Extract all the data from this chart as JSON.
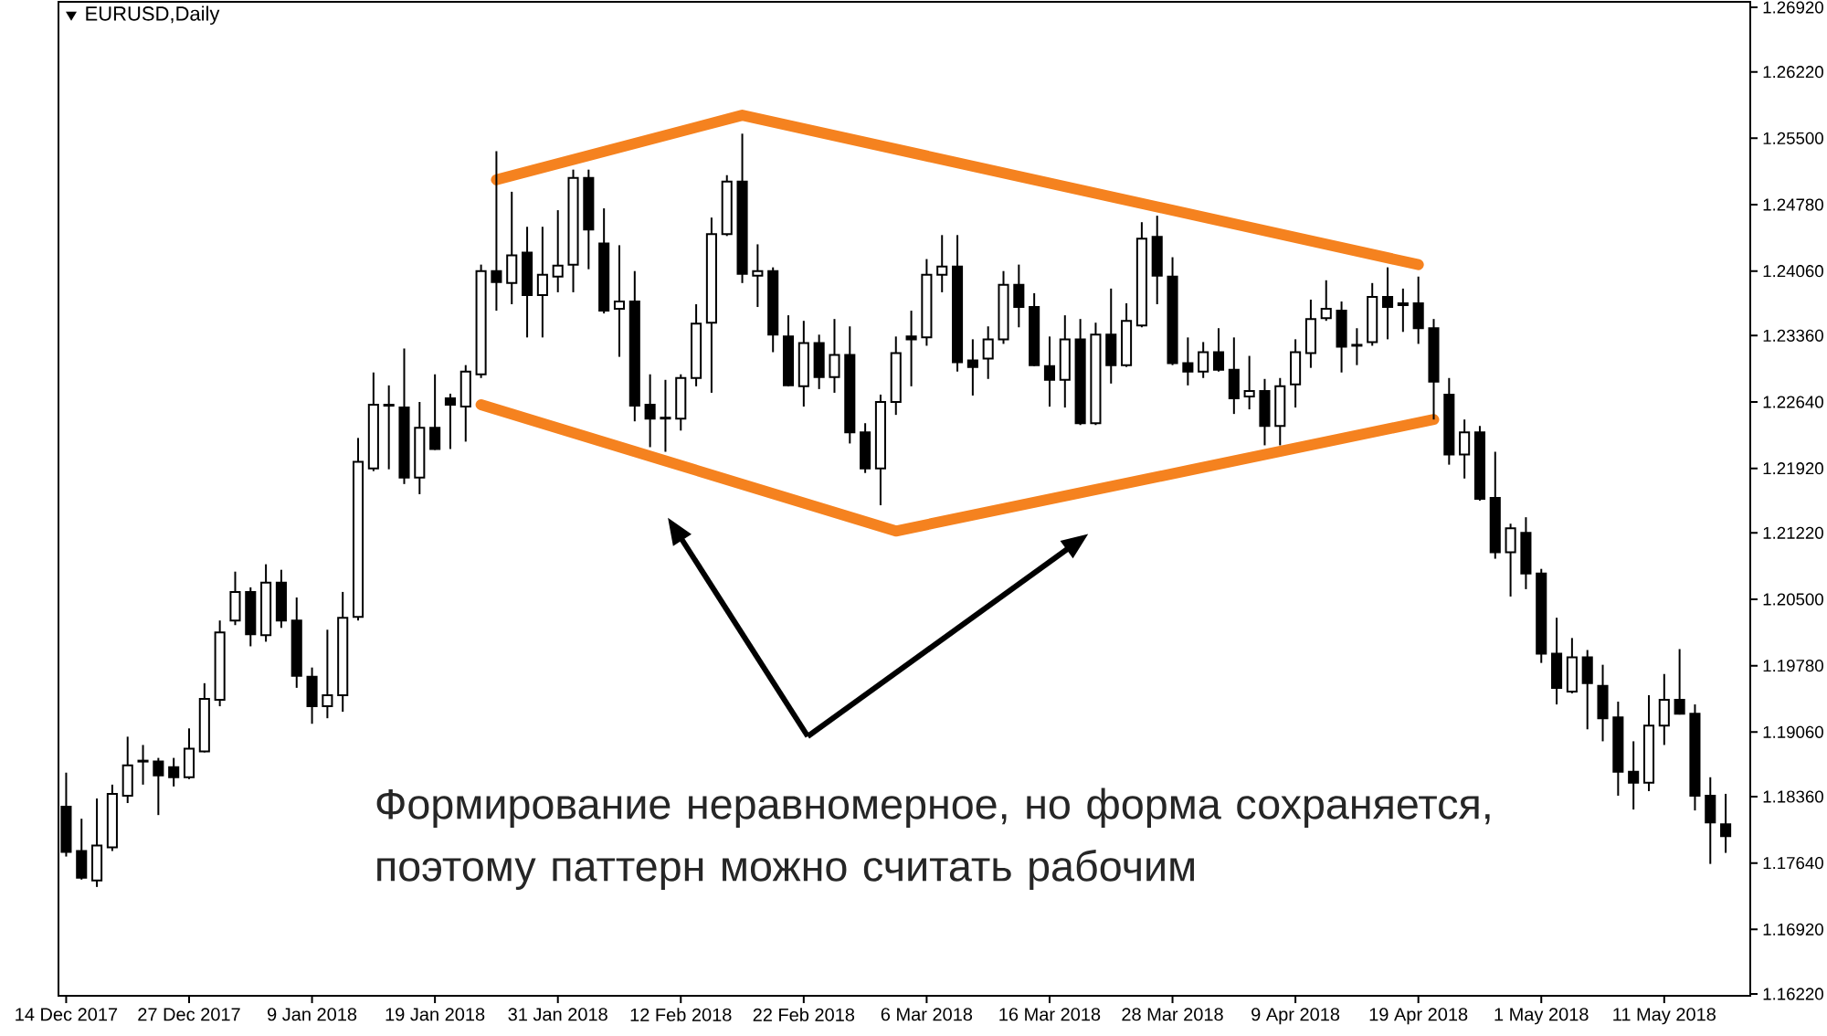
{
  "chart_data": {
    "type": "candlestick",
    "title": "EURUSD,Daily",
    "categories": [
      "14 Dec 2017",
      null,
      null,
      null,
      null,
      null,
      null,
      null,
      "27 Dec 2017",
      null,
      null,
      null,
      null,
      null,
      null,
      null,
      "9 Jan 2018",
      null,
      null,
      null,
      null,
      null,
      null,
      null,
      "19 Jan 2018",
      null,
      null,
      null,
      null,
      null,
      null,
      null,
      "31 Jan 2018",
      null,
      null,
      null,
      null,
      null,
      null,
      null,
      "12 Feb 2018",
      null,
      null,
      null,
      null,
      null,
      null,
      null,
      "22 Feb 2018",
      null,
      null,
      null,
      null,
      null,
      null,
      null,
      "6 Mar 2018",
      null,
      null,
      null,
      null,
      null,
      null,
      null,
      "16 Mar 2018",
      null,
      null,
      null,
      null,
      null,
      null,
      null,
      "28 Mar 2018",
      null,
      null,
      null,
      null,
      null,
      null,
      null,
      "9 Apr 2018",
      null,
      null,
      null,
      null,
      null,
      null,
      null,
      "19 Apr 2018",
      null,
      null,
      null,
      null,
      null,
      null,
      null,
      "1 May 2018",
      null,
      null,
      null,
      null,
      null,
      null,
      null,
      "11 May 2018",
      null,
      null,
      null,
      null
    ],
    "ohlc": [
      [
        1.1825,
        1.1862,
        1.1771,
        1.1776
      ],
      [
        1.1777,
        1.1812,
        1.1746,
        1.1748
      ],
      [
        1.1745,
        1.1834,
        1.1738,
        1.1783
      ],
      [
        1.1781,
        1.1849,
        1.1777,
        1.1839
      ],
      [
        1.1837,
        1.1901,
        1.1829,
        1.187
      ],
      [
        1.1874,
        1.1892,
        1.1849,
        1.1875
      ],
      [
        1.1874,
        1.1878,
        1.1816,
        1.1859
      ],
      [
        1.1868,
        1.1878,
        1.1847,
        1.1857
      ],
      [
        1.1857,
        1.191,
        1.1855,
        1.1888
      ],
      [
        1.1885,
        1.1959,
        1.1884,
        1.1942
      ],
      [
        1.1941,
        1.2027,
        1.1934,
        1.2014
      ],
      [
        1.2027,
        1.208,
        1.2022,
        1.2058
      ],
      [
        1.2058,
        1.2063,
        1.1999,
        1.2012
      ],
      [
        1.2011,
        1.2088,
        1.2004,
        1.2068
      ],
      [
        1.2068,
        1.2082,
        1.2019,
        1.2027
      ],
      [
        1.2027,
        1.2052,
        1.1954,
        1.1967
      ],
      [
        1.1966,
        1.1976,
        1.1915,
        1.1934
      ],
      [
        1.1934,
        1.2017,
        1.1921,
        1.1946
      ],
      [
        1.1946,
        1.2058,
        1.1928,
        1.203
      ],
      [
        1.2031,
        1.2225,
        1.2027,
        1.2199
      ],
      [
        1.2192,
        1.2296,
        1.2189,
        1.2261
      ],
      [
        1.2261,
        1.2282,
        1.2191,
        1.226
      ],
      [
        1.2258,
        1.2322,
        1.2175,
        1.2182
      ],
      [
        1.2182,
        1.2264,
        1.2164,
        1.2236
      ],
      [
        1.2236,
        1.2294,
        1.2212,
        1.2213
      ],
      [
        1.2268,
        1.2273,
        1.2213,
        1.2261
      ],
      [
        1.2259,
        1.2304,
        1.2221,
        1.2297
      ],
      [
        1.2294,
        1.2413,
        1.229,
        1.2406
      ],
      [
        1.2406,
        1.2536,
        1.2363,
        1.2394
      ],
      [
        1.2393,
        1.2492,
        1.237,
        1.2423
      ],
      [
        1.2426,
        1.2454,
        1.2334,
        1.238
      ],
      [
        1.238,
        1.2454,
        1.2334,
        1.2402
      ],
      [
        1.24,
        1.2472,
        1.2383,
        1.2412
      ],
      [
        1.2413,
        1.2516,
        1.2383,
        1.2507
      ],
      [
        1.2507,
        1.2516,
        1.2408,
        1.2451
      ],
      [
        1.2436,
        1.2474,
        1.236,
        1.2363
      ],
      [
        1.2365,
        1.2434,
        1.2313,
        1.2373
      ],
      [
        1.2373,
        1.2406,
        1.2243,
        1.226
      ],
      [
        1.2261,
        1.2294,
        1.2215,
        1.2246
      ],
      [
        1.2246,
        1.2288,
        1.221,
        1.2247
      ],
      [
        1.2246,
        1.2294,
        1.2233,
        1.229
      ],
      [
        1.229,
        1.237,
        1.2281,
        1.2349
      ],
      [
        1.235,
        1.2464,
        1.2274,
        1.2446
      ],
      [
        1.2446,
        1.251,
        1.2444,
        1.2503
      ],
      [
        1.2503,
        1.2555,
        1.2393,
        1.2403
      ],
      [
        1.2401,
        1.2435,
        1.2367,
        1.2406
      ],
      [
        1.2406,
        1.241,
        1.2318,
        1.2337
      ],
      [
        1.2335,
        1.2358,
        1.2281,
        1.2282
      ],
      [
        1.2281,
        1.2352,
        1.2259,
        1.2328
      ],
      [
        1.2328,
        1.2337,
        1.2278,
        1.2291
      ],
      [
        1.2291,
        1.2354,
        1.2274,
        1.2315
      ],
      [
        1.2315,
        1.2346,
        1.2219,
        1.2231
      ],
      [
        1.2231,
        1.2241,
        1.2187,
        1.2192
      ],
      [
        1.2192,
        1.2272,
        1.2152,
        1.2264
      ],
      [
        1.2264,
        1.2335,
        1.225,
        1.2317
      ],
      [
        1.2335,
        1.2363,
        1.2281,
        1.2332
      ],
      [
        1.2334,
        1.2419,
        1.2325,
        1.2402
      ],
      [
        1.2402,
        1.2445,
        1.2383,
        1.2411
      ],
      [
        1.2411,
        1.2445,
        1.2297,
        1.2307
      ],
      [
        1.2309,
        1.2332,
        1.2271,
        1.2302
      ],
      [
        1.2311,
        1.2346,
        1.2289,
        1.2332
      ],
      [
        1.2332,
        1.2406,
        1.2327,
        1.2391
      ],
      [
        1.2391,
        1.2413,
        1.2345,
        1.2367
      ],
      [
        1.2367,
        1.2382,
        1.2303,
        1.2304
      ],
      [
        1.2303,
        1.2335,
        1.2259,
        1.2288
      ],
      [
        1.2288,
        1.2358,
        1.2258,
        1.2332
      ],
      [
        1.2332,
        1.2354,
        1.2239,
        1.2241
      ],
      [
        1.2241,
        1.235,
        1.2239,
        1.2337
      ],
      [
        1.2337,
        1.2387,
        1.2284,
        1.2304
      ],
      [
        1.2304,
        1.2371,
        1.2302,
        1.2352
      ],
      [
        1.2347,
        1.2459,
        1.2345,
        1.2441
      ],
      [
        1.2443,
        1.2466,
        1.237,
        1.2401
      ],
      [
        1.24,
        1.2421,
        1.2304,
        1.2306
      ],
      [
        1.2306,
        1.2334,
        1.2282,
        1.2297
      ],
      [
        1.2297,
        1.2329,
        1.229,
        1.2318
      ],
      [
        1.2318,
        1.2344,
        1.2297,
        1.2299
      ],
      [
        1.2299,
        1.2334,
        1.2251,
        1.2268
      ],
      [
        1.227,
        1.2314,
        1.2256,
        1.2276
      ],
      [
        1.2276,
        1.2289,
        1.2217,
        1.2238
      ],
      [
        1.2238,
        1.229,
        1.2217,
        1.2281
      ],
      [
        1.2283,
        1.2332,
        1.2258,
        1.2318
      ],
      [
        1.2317,
        1.2375,
        1.2301,
        1.2354
      ],
      [
        1.2355,
        1.2396,
        1.2352,
        1.2365
      ],
      [
        1.2363,
        1.2373,
        1.2296,
        1.2324
      ],
      [
        1.2325,
        1.2344,
        1.2304,
        1.2326
      ],
      [
        1.2329,
        1.2393,
        1.2325,
        1.2378
      ],
      [
        1.2378,
        1.241,
        1.2332,
        1.2367
      ],
      [
        1.2371,
        1.2387,
        1.234,
        1.2369
      ],
      [
        1.2371,
        1.24,
        1.2327,
        1.2344
      ],
      [
        1.2344,
        1.2354,
        1.2245,
        1.2286
      ],
      [
        1.2272,
        1.229,
        1.2196,
        1.2207
      ],
      [
        1.2207,
        1.2245,
        1.2181,
        1.2231
      ],
      [
        1.2231,
        1.2238,
        1.2157,
        1.2159
      ],
      [
        1.216,
        1.221,
        1.2094,
        1.2101
      ],
      [
        1.2101,
        1.2132,
        1.2053,
        1.2127
      ],
      [
        1.2122,
        1.2139,
        1.2061,
        1.2078
      ],
      [
        1.2078,
        1.2083,
        1.1981,
        1.1991
      ],
      [
        1.1991,
        1.203,
        1.1936,
        1.1954
      ],
      [
        1.195,
        1.2008,
        1.1948,
        1.1987
      ],
      [
        1.1987,
        1.1995,
        1.1909,
        1.1959
      ],
      [
        1.1956,
        1.1979,
        1.1896,
        1.1921
      ],
      [
        1.1922,
        1.1939,
        1.1837,
        1.1863
      ],
      [
        1.1863,
        1.1896,
        1.1822,
        1.1851
      ],
      [
        1.1851,
        1.1946,
        1.1842,
        1.1913
      ],
      [
        1.1913,
        1.1969,
        1.1892,
        1.1941
      ],
      [
        1.1941,
        1.1996,
        1.1925,
        1.1926
      ],
      [
        1.1926,
        1.1936,
        1.1821,
        1.1837
      ],
      [
        1.1837,
        1.1857,
        1.1763,
        1.1808
      ],
      [
        1.1806,
        1.1839,
        1.1775,
        1.1793
      ]
    ],
    "series": [
      {
        "type": "line",
        "color": "#f5821f",
        "values": [
          null,
          null,
          null,
          null,
          null,
          null,
          null,
          null,
          null,
          null,
          null,
          null,
          null,
          null,
          null,
          null,
          null,
          null,
          null,
          null,
          null,
          null,
          null,
          null,
          null,
          null,
          null,
          null,
          1.2505,
          null,
          null,
          null,
          null,
          null,
          null,
          null,
          null,
          null,
          null,
          null,
          null,
          null,
          null,
          null,
          1.2575,
          null,
          null,
          null,
          null,
          null,
          null,
          null,
          null,
          null,
          null,
          null,
          null,
          null,
          null,
          null,
          null,
          null,
          null,
          null,
          null,
          null,
          null,
          null,
          null,
          null,
          null,
          null,
          null,
          null,
          null,
          null,
          null,
          null,
          null,
          null,
          null,
          null,
          null,
          null,
          null,
          null,
          null,
          null,
          1.2413,
          null,
          null,
          null,
          null,
          null,
          null,
          null,
          null,
          null,
          null,
          null,
          null,
          null,
          null,
          null,
          null,
          null,
          null,
          null,
          null
        ]
      },
      {
        "type": "line",
        "color": "#f5821f",
        "values": [
          null,
          null,
          null,
          null,
          null,
          null,
          null,
          null,
          null,
          null,
          null,
          null,
          null,
          null,
          null,
          null,
          null,
          null,
          null,
          null,
          null,
          null,
          null,
          null,
          null,
          null,
          null,
          1.2261,
          null,
          null,
          null,
          null,
          null,
          null,
          null,
          null,
          null,
          null,
          null,
          null,
          null,
          null,
          null,
          null,
          null,
          null,
          null,
          null,
          null,
          null,
          null,
          null,
          null,
          null,
          1.2124,
          null,
          null,
          null,
          null,
          null,
          null,
          null,
          null,
          null,
          null,
          null,
          null,
          null,
          null,
          null,
          null,
          null,
          null,
          null,
          null,
          null,
          null,
          null,
          null,
          null,
          null,
          null,
          null,
          null,
          null,
          null,
          null,
          null,
          null,
          1.2245,
          null,
          null,
          null,
          null,
          null,
          null,
          null,
          null,
          null,
          null,
          null,
          null,
          null,
          null,
          null,
          null,
          null,
          null,
          null
        ]
      }
    ],
    "ylim": [
      1.162,
      1.2698
    ],
    "yticks": [
      {
        "value": 1.2692,
        "label": "1.26920"
      },
      {
        "value": 1.2622,
        "label": "1.26220"
      },
      {
        "value": 1.255,
        "label": "1.25500"
      },
      {
        "value": 1.2478,
        "label": "1.24780"
      },
      {
        "value": 1.2406,
        "label": "1.24060"
      },
      {
        "value": 1.2336,
        "label": "1.23360"
      },
      {
        "value": 1.2264,
        "label": "1.22640"
      },
      {
        "value": 1.2192,
        "label": "1.21920"
      },
      {
        "value": 1.2122,
        "label": "1.21220"
      },
      {
        "value": 1.205,
        "label": "1.20500"
      },
      {
        "value": 1.1978,
        "label": "1.19780"
      },
      {
        "value": 1.1906,
        "label": "1.19060"
      },
      {
        "value": 1.1836,
        "label": "1.18360"
      },
      {
        "value": 1.1764,
        "label": "1.17640"
      },
      {
        "value": 1.1692,
        "label": "1.16920"
      },
      {
        "value": 1.1622,
        "label": "1.16220"
      }
    ],
    "annotations": [
      "Формирование неравномерное, но форма сохраняется, поэтому паттерн можно считать рабочим"
    ]
  }
}
